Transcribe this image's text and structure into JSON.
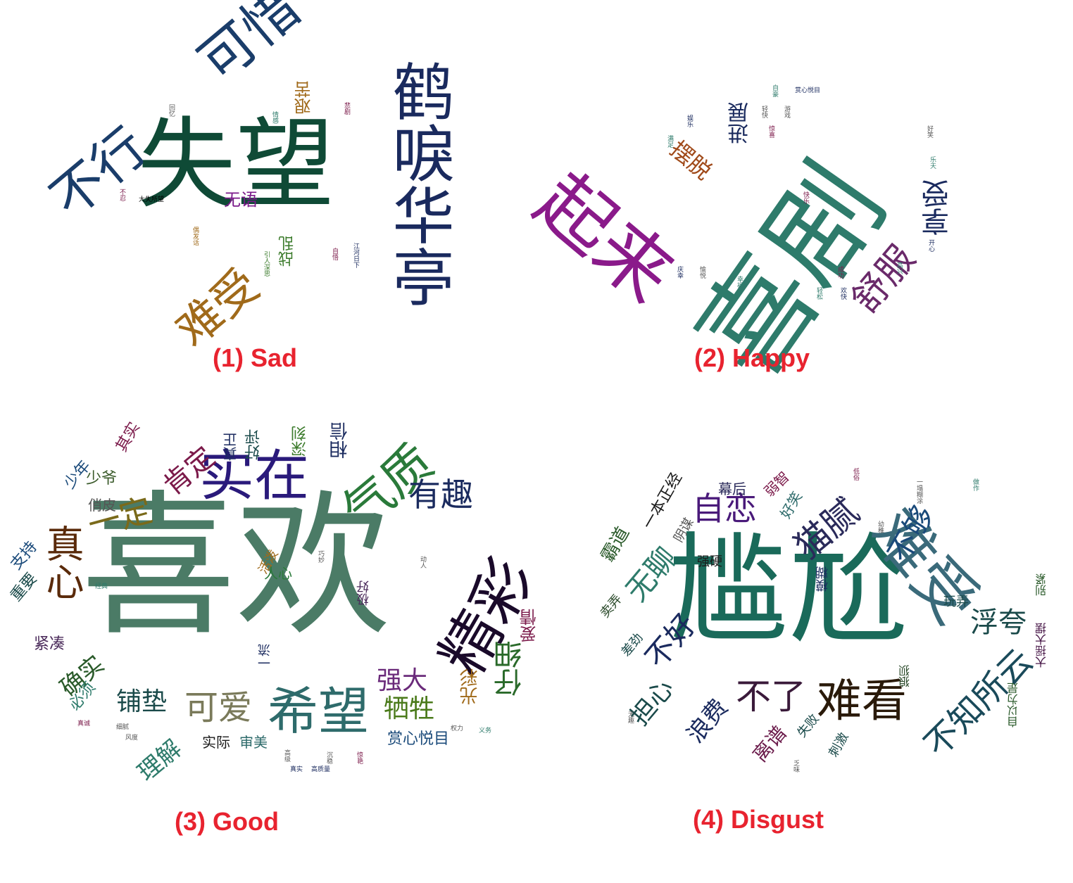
{
  "captions": {
    "sad": "(1) Sad",
    "happy": "(2) Happy",
    "good": "(3) Good",
    "disgust": "(4) Disgust"
  },
  "colors": {
    "caption": "#e8232f",
    "dark_green": "#0f4a36",
    "teal": "#2e7b6b",
    "navy": "#1a2a5e",
    "purple": "#7b1a8a",
    "orange_brown": "#a06a1a",
    "sage": "#4b7b66"
  },
  "clouds": {
    "sad": [
      {
        "text": "失望",
        "color": "#0f4a36",
        "size": 140
      },
      {
        "text": "鹤唳华亭",
        "color": "#1a2a5e",
        "size": 90
      },
      {
        "text": "可惜",
        "color": "#1a3d6a",
        "size": 78
      },
      {
        "text": "不行",
        "color": "#1a3d6a",
        "size": 74
      },
      {
        "text": "难受",
        "color": "#a06a1a",
        "size": 66
      },
      {
        "text": "无语",
        "color": "#7b1a8a",
        "size": 24
      },
      {
        "text": "艰苦",
        "color": "#a06a1a",
        "size": 24
      },
      {
        "text": "战乱",
        "color": "#3a7a2a",
        "size": 22
      },
      {
        "text": "大失所望",
        "color": "#000000",
        "size": 9
      },
      {
        "text": "回忆",
        "color": "#555555",
        "size": 9
      },
      {
        "text": "情感",
        "color": "#2e7b6b",
        "size": 9
      },
      {
        "text": "悲剧",
        "color": "#7b1a4a",
        "size": 9
      },
      {
        "text": "引人深思",
        "color": "#3a7a2a",
        "size": 9
      },
      {
        "text": "江河日下",
        "color": "#1a2a5e",
        "size": 9
      },
      {
        "text": "自悟",
        "color": "#7b1a4a",
        "size": 9
      },
      {
        "text": "偶发话",
        "color": "#a06a1a",
        "size": 9
      },
      {
        "text": "不忍",
        "color": "#7b1a4a",
        "size": 9
      }
    ],
    "happy": [
      {
        "text": "喜剧",
        "color": "#2e7b6b",
        "size": 160
      },
      {
        "text": "起来",
        "color": "#8a1a8a",
        "size": 110
      },
      {
        "text": "舒服",
        "color": "#6a2a6a",
        "size": 52
      },
      {
        "text": "享受",
        "color": "#1a2a5e",
        "size": 40
      },
      {
        "text": "摆脱",
        "color": "#a04a1a",
        "size": 32
      },
      {
        "text": "进展",
        "color": "#1a2a5e",
        "size": 30
      },
      {
        "text": "赏心悦目",
        "color": "#1a2a5e",
        "size": 9
      },
      {
        "text": "自豪",
        "color": "#2e7b6b",
        "size": 9
      },
      {
        "text": "轻快",
        "color": "#555555",
        "size": 9
      },
      {
        "text": "游戏",
        "color": "#555555",
        "size": 9
      },
      {
        "text": "惊喜",
        "color": "#7b1a4a",
        "size": 9
      },
      {
        "text": "满足",
        "color": "#2e7b6b",
        "size": 9
      },
      {
        "text": "娱乐",
        "color": "#1a2a5e",
        "size": 9
      },
      {
        "text": "好笑",
        "color": "#555555",
        "size": 9
      },
      {
        "text": "乐天",
        "color": "#2e7b6b",
        "size": 9
      },
      {
        "text": "欢快",
        "color": "#1a2a5e",
        "size": 9
      },
      {
        "text": "轻松",
        "color": "#2e7b6b",
        "size": 9
      },
      {
        "text": "成功",
        "color": "#7b1a4a",
        "size": 9
      },
      {
        "text": "高兴",
        "color": "#2e7b6b",
        "size": 9
      },
      {
        "text": "开心",
        "color": "#1a2a5e",
        "size": 9
      },
      {
        "text": "快乐",
        "color": "#7b1a4a",
        "size": 9
      },
      {
        "text": "幸福",
        "color": "#2e7b6b",
        "size": 9
      },
      {
        "text": "愉悦",
        "color": "#555555",
        "size": 9
      },
      {
        "text": "庆幸",
        "color": "#1a2a5e",
        "size": 9
      }
    ],
    "good": [
      {
        "text": "喜欢",
        "color": "#4b7b66",
        "size": 220
      },
      {
        "text": "精彩",
        "color": "#1a0a2a",
        "size": 88
      },
      {
        "text": "实在",
        "color": "#2a1a7b",
        "size": 78
      },
      {
        "text": "气质",
        "color": "#2a7a3a",
        "size": 72
      },
      {
        "text": "希望",
        "color": "#2e6b6b",
        "size": 72
      },
      {
        "text": "真心",
        "color": "#5a2a0a",
        "size": 58
      },
      {
        "text": "可爱",
        "color": "#7a7a5a",
        "size": 50
      },
      {
        "text": "有趣",
        "color": "#1a2a5e",
        "size": 48
      },
      {
        "text": "一定",
        "color": "#7a6a1a",
        "size": 48
      },
      {
        "text": "肯定",
        "color": "#7b1a4a",
        "size": 42
      },
      {
        "text": "仔细",
        "color": "#2a6a2a",
        "size": 42
      },
      {
        "text": "强大",
        "color": "#6a2a7a",
        "size": 38
      },
      {
        "text": "铺垫",
        "color": "#1a4a4a",
        "size": 38
      },
      {
        "text": "牺牲",
        "color": "#4a7a1a",
        "size": 38
      },
      {
        "text": "理解",
        "color": "#2e7b6b",
        "size": 36
      },
      {
        "text": "确实",
        "color": "#2a5a2a",
        "size": 36
      },
      {
        "text": "相信",
        "color": "#1a2a5e",
        "size": 28
      },
      {
        "text": "光彩",
        "color": "#a06a1a",
        "size": 28
      },
      {
        "text": "爱情",
        "color": "#7b1a4a",
        "size": 26
      },
      {
        "text": "赏心悦目",
        "color": "#1a4a7a",
        "size": 24
      },
      {
        "text": "深刻",
        "color": "#3a7a2a",
        "size": 22
      },
      {
        "text": "好评",
        "color": "#1a4a4a",
        "size": 22
      },
      {
        "text": "真正",
        "color": "#1a2a5e",
        "size": 20
      },
      {
        "text": "其实",
        "color": "#7b1a4a",
        "size": 22
      },
      {
        "text": "少爷",
        "color": "#3a5a2a",
        "size": 22
      },
      {
        "text": "少年",
        "color": "#1a4a7a",
        "size": 22
      },
      {
        "text": "俏皮",
        "color": "#555555",
        "size": 22
      },
      {
        "text": "支持",
        "color": "#1a4a7a",
        "size": 22
      },
      {
        "text": "重要",
        "color": "#1a4a4a",
        "size": 22
      },
      {
        "text": "紧凑",
        "color": "#4a2a5a",
        "size": 22
      },
      {
        "text": "必须",
        "color": "#2e7b6b",
        "size": 22
      },
      {
        "text": "实际",
        "color": "#1a1a1a",
        "size": 22
      },
      {
        "text": "审美",
        "color": "#2e6b6b",
        "size": 22
      },
      {
        "text": "活泼",
        "color": "#a06a1a",
        "size": 20
      },
      {
        "text": "人心",
        "color": "#2a7a3a",
        "size": 20
      },
      {
        "text": "极好",
        "color": "#4a2a5a",
        "size": 18
      },
      {
        "text": "一流",
        "color": "#1a2a5e",
        "size": 18
      },
      {
        "text": "巧妙",
        "color": "#555555",
        "size": 9
      },
      {
        "text": "动人",
        "color": "#555555",
        "size": 9
      },
      {
        "text": "经典",
        "color": "#2e7b6b",
        "size": 9
      },
      {
        "text": "真诚",
        "color": "#7b1a4a",
        "size": 9
      },
      {
        "text": "高级",
        "color": "#555555",
        "size": 9
      },
      {
        "text": "沉稳",
        "color": "#555555",
        "size": 9
      },
      {
        "text": "真实",
        "color": "#1a2a5e",
        "size": 9
      },
      {
        "text": "高质量",
        "color": "#1a2a5e",
        "size": 9
      },
      {
        "text": "惊艳",
        "color": "#7b1a4a",
        "size": 9
      },
      {
        "text": "权力",
        "color": "#555555",
        "size": 9
      },
      {
        "text": "义务",
        "color": "#2e7b6b",
        "size": 9
      },
      {
        "text": "细腻",
        "color": "#555555",
        "size": 9
      },
      {
        "text": "风度",
        "color": "#555555",
        "size": 9
      }
    ],
    "disgust": [
      {
        "text": "尴尬",
        "color": "#1a6a5a",
        "size": 170
      },
      {
        "text": "难受",
        "color": "#3a6a7a",
        "size": 90
      },
      {
        "text": "难看",
        "color": "#2a1a0a",
        "size": 64
      },
      {
        "text": "不了",
        "color": "#3a1a3a",
        "size": 52
      },
      {
        "text": "不知所云",
        "color": "#1a4a5a",
        "size": 50
      },
      {
        "text": "猫腻",
        "color": "#2a2a5a",
        "size": 50
      },
      {
        "text": "自恋",
        "color": "#4a1a7a",
        "size": 48
      },
      {
        "text": "不够",
        "color": "#1a4a7a",
        "size": 44
      },
      {
        "text": "不好",
        "color": "#1a2a5e",
        "size": 44
      },
      {
        "text": "无聊",
        "color": "#2e7b6b",
        "size": 44
      },
      {
        "text": "浮夸",
        "color": "#1a4a4a",
        "size": 42
      },
      {
        "text": "担心",
        "color": "#1a4a4a",
        "size": 38
      },
      {
        "text": "浪费",
        "color": "#1a2a5e",
        "size": 36
      },
      {
        "text": "离谱",
        "color": "#6a1a4a",
        "size": 30
      },
      {
        "text": "霸道",
        "color": "#2a5a2a",
        "size": 28
      },
      {
        "text": "一本正经",
        "color": "#1a1a1a",
        "size": 24
      },
      {
        "text": "幕后",
        "color": "#2a2a5a",
        "size": 22
      },
      {
        "text": "弱智",
        "color": "#7b1a4a",
        "size": 22
      },
      {
        "text": "好笑",
        "color": "#2e6b6b",
        "size": 22
      },
      {
        "text": "阴谋",
        "color": "#555555",
        "size": 20
      },
      {
        "text": "强硬",
        "color": "#1a1a1a",
        "size": 20
      },
      {
        "text": "卖弄",
        "color": "#2a4a2a",
        "size": 20
      },
      {
        "text": "差劲",
        "color": "#1a4a4a",
        "size": 20
      },
      {
        "text": "模糊",
        "color": "#1a2a5e",
        "size": 20
      },
      {
        "text": "玩弄",
        "color": "#1a4a4a",
        "size": 20
      },
      {
        "text": "失败",
        "color": "#1a4a4a",
        "size": 20
      },
      {
        "text": "刺激",
        "color": "#1a4a4a",
        "size": 20
      },
      {
        "text": "狼狈",
        "color": "#2a4a2a",
        "size": 18
      },
      {
        "text": "大摇大摆",
        "color": "#4a1a4a",
        "size": 18
      },
      {
        "text": "自以为是",
        "color": "#2a5a2a",
        "size": 18
      },
      {
        "text": "别紧",
        "color": "#2a5a2a",
        "size": 18
      },
      {
        "text": "幼稚",
        "color": "#555555",
        "size": 9
      },
      {
        "text": "一塌糊涂",
        "color": "#555555",
        "size": 9
      },
      {
        "text": "低俗",
        "color": "#7b1a4a",
        "size": 9
      },
      {
        "text": "做作",
        "color": "#2e7b6b",
        "size": 9
      },
      {
        "text": "无趣",
        "color": "#555555",
        "size": 9
      },
      {
        "text": "乏味",
        "color": "#555555",
        "size": 9
      }
    ]
  }
}
